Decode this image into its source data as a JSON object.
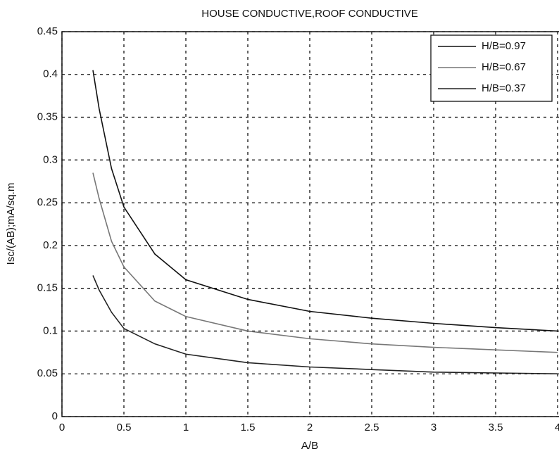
{
  "chart_data": {
    "type": "line",
    "title": "HOUSE CONDUCTIVE,ROOF CONDUCTIVE",
    "x_label": "A/B",
    "y_label": "Isc/(AB);mA/sq.m",
    "x": [
      0.25,
      0.3,
      0.4,
      0.5,
      0.75,
      1,
      1.5,
      2,
      2.5,
      3,
      3.5,
      4
    ],
    "series": [
      {
        "name": "H/B=0.97",
        "color": "#111111",
        "values": [
          0.405,
          0.36,
          0.29,
          0.245,
          0.19,
          0.16,
          0.137,
          0.123,
          0.115,
          0.109,
          0.104,
          0.1
        ]
      },
      {
        "name": "H/B=0.67",
        "color": "#777777",
        "values": [
          0.285,
          0.255,
          0.205,
          0.175,
          0.135,
          0.117,
          0.1,
          0.091,
          0.085,
          0.081,
          0.078,
          0.075
        ]
      },
      {
        "name": "H/B=0.37",
        "color": "#222222",
        "values": [
          0.165,
          0.148,
          0.122,
          0.103,
          0.085,
          0.073,
          0.063,
          0.058,
          0.055,
          0.052,
          0.051,
          0.05
        ]
      }
    ],
    "xlim": [
      0,
      4
    ],
    "ylim": [
      0,
      0.45
    ],
    "xticks": [
      0,
      0.5,
      1,
      1.5,
      2,
      2.5,
      3,
      3.5,
      4
    ],
    "yticks": [
      0,
      0.05,
      0.1,
      0.15,
      0.2,
      0.25,
      0.3,
      0.35,
      0.4,
      0.45
    ],
    "grid": true,
    "legend": "upper right"
  }
}
